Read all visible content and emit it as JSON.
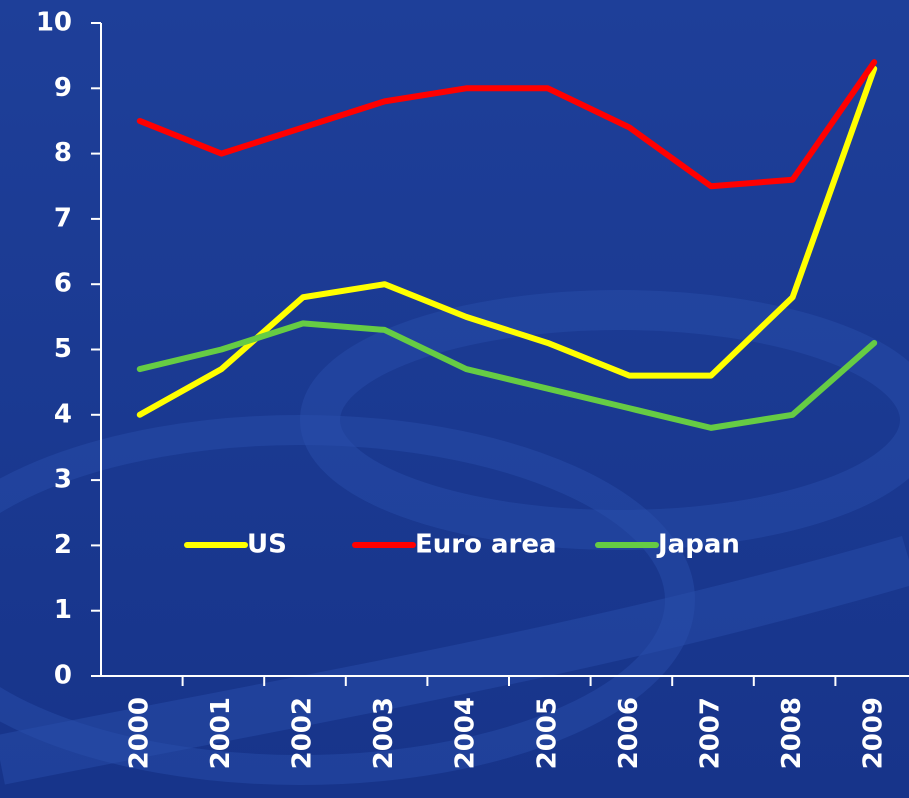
{
  "chart_data": {
    "type": "line",
    "categories": [
      "2000",
      "2001",
      "2002",
      "2003",
      "2004",
      "2005",
      "2006",
      "2007",
      "2008",
      "2009"
    ],
    "series": [
      {
        "name": "US",
        "color": "#ffff00",
        "values": [
          4.0,
          4.7,
          5.8,
          6.0,
          5.5,
          5.1,
          4.6,
          4.6,
          5.8,
          9.3
        ]
      },
      {
        "name": "Euro area",
        "color": "#ff0000",
        "values": [
          8.5,
          8.0,
          8.4,
          8.8,
          9.0,
          9.0,
          8.4,
          7.5,
          7.6,
          9.4
        ]
      },
      {
        "name": "Japan",
        "color": "#66cc44",
        "values": [
          4.7,
          5.0,
          5.4,
          5.3,
          4.7,
          4.4,
          4.1,
          3.8,
          4.0,
          5.1
        ]
      }
    ],
    "ylim": [
      0,
      10
    ],
    "yticks": [
      0,
      1,
      2,
      3,
      4,
      5,
      6,
      7,
      8,
      9,
      10
    ],
    "legend": "center"
  }
}
